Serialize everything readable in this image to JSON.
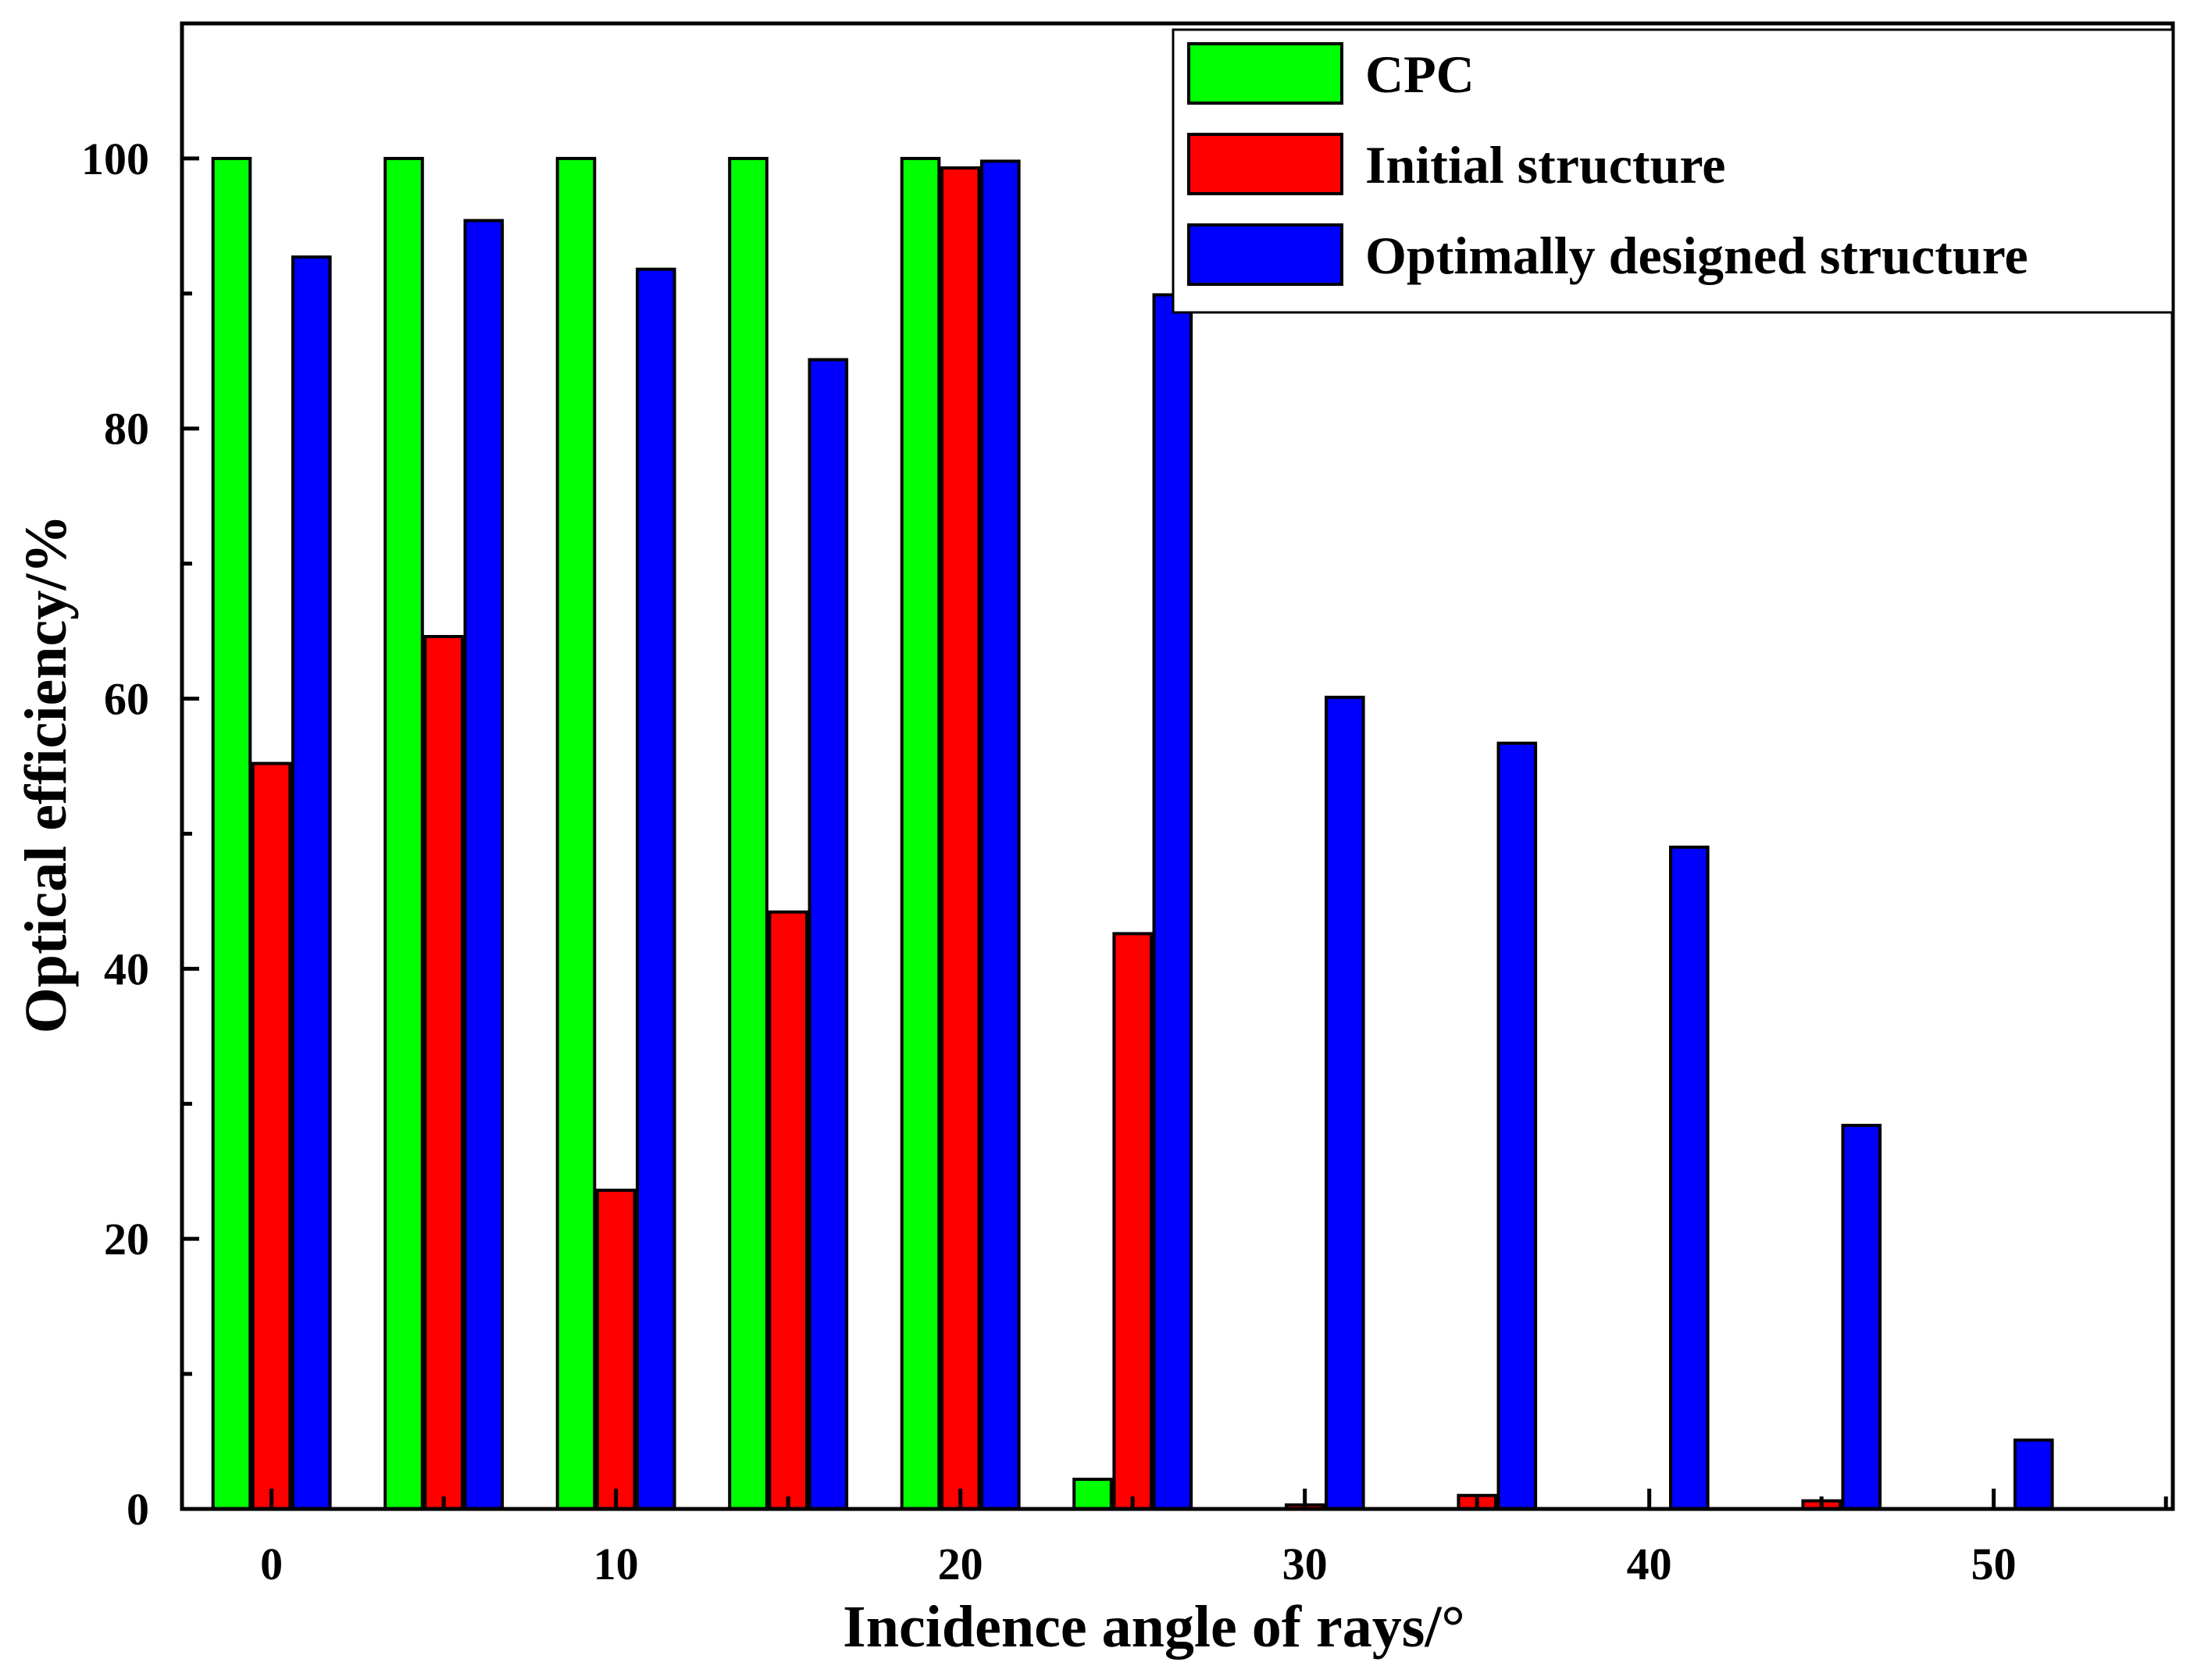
{
  "chart_data": {
    "type": "bar",
    "title": "",
    "xlabel": "Incidence angle of rays/°",
    "ylabel": "Optical efficiency/%",
    "x_categories": [
      0,
      5,
      10,
      15,
      20,
      25,
      30,
      35,
      40,
      45,
      50
    ],
    "x_tick_labels": [
      "0",
      "10",
      "20",
      "30",
      "40",
      "50"
    ],
    "x_tick_values": [
      0,
      10,
      20,
      30,
      40,
      50
    ],
    "y_tick_labels": [
      "0",
      "20",
      "40",
      "60",
      "80",
      "100"
    ],
    "y_tick_values": [
      0,
      20,
      40,
      60,
      80,
      100
    ],
    "xlim": [
      -2.6,
      55.2
    ],
    "ylim": [
      0,
      110
    ],
    "legend_position": "top-right",
    "series": [
      {
        "name": "CPC",
        "color": "#00ff00",
        "values": [
          100,
          100,
          100,
          100,
          100,
          2.2,
          0,
          0,
          0,
          0,
          0
        ]
      },
      {
        "name": "Initial structure",
        "color": "#ff0000",
        "values": [
          55.2,
          64.6,
          23.6,
          44.2,
          99.3,
          42.6,
          0.3,
          1.0,
          0,
          0.6,
          0
        ]
      },
      {
        "name": "Optimally designed structure",
        "color": "#0000ff",
        "values": [
          92.7,
          95.4,
          91.8,
          85.1,
          99.8,
          89.9,
          60.1,
          56.7,
          49.0,
          28.4,
          5.1
        ]
      }
    ]
  }
}
